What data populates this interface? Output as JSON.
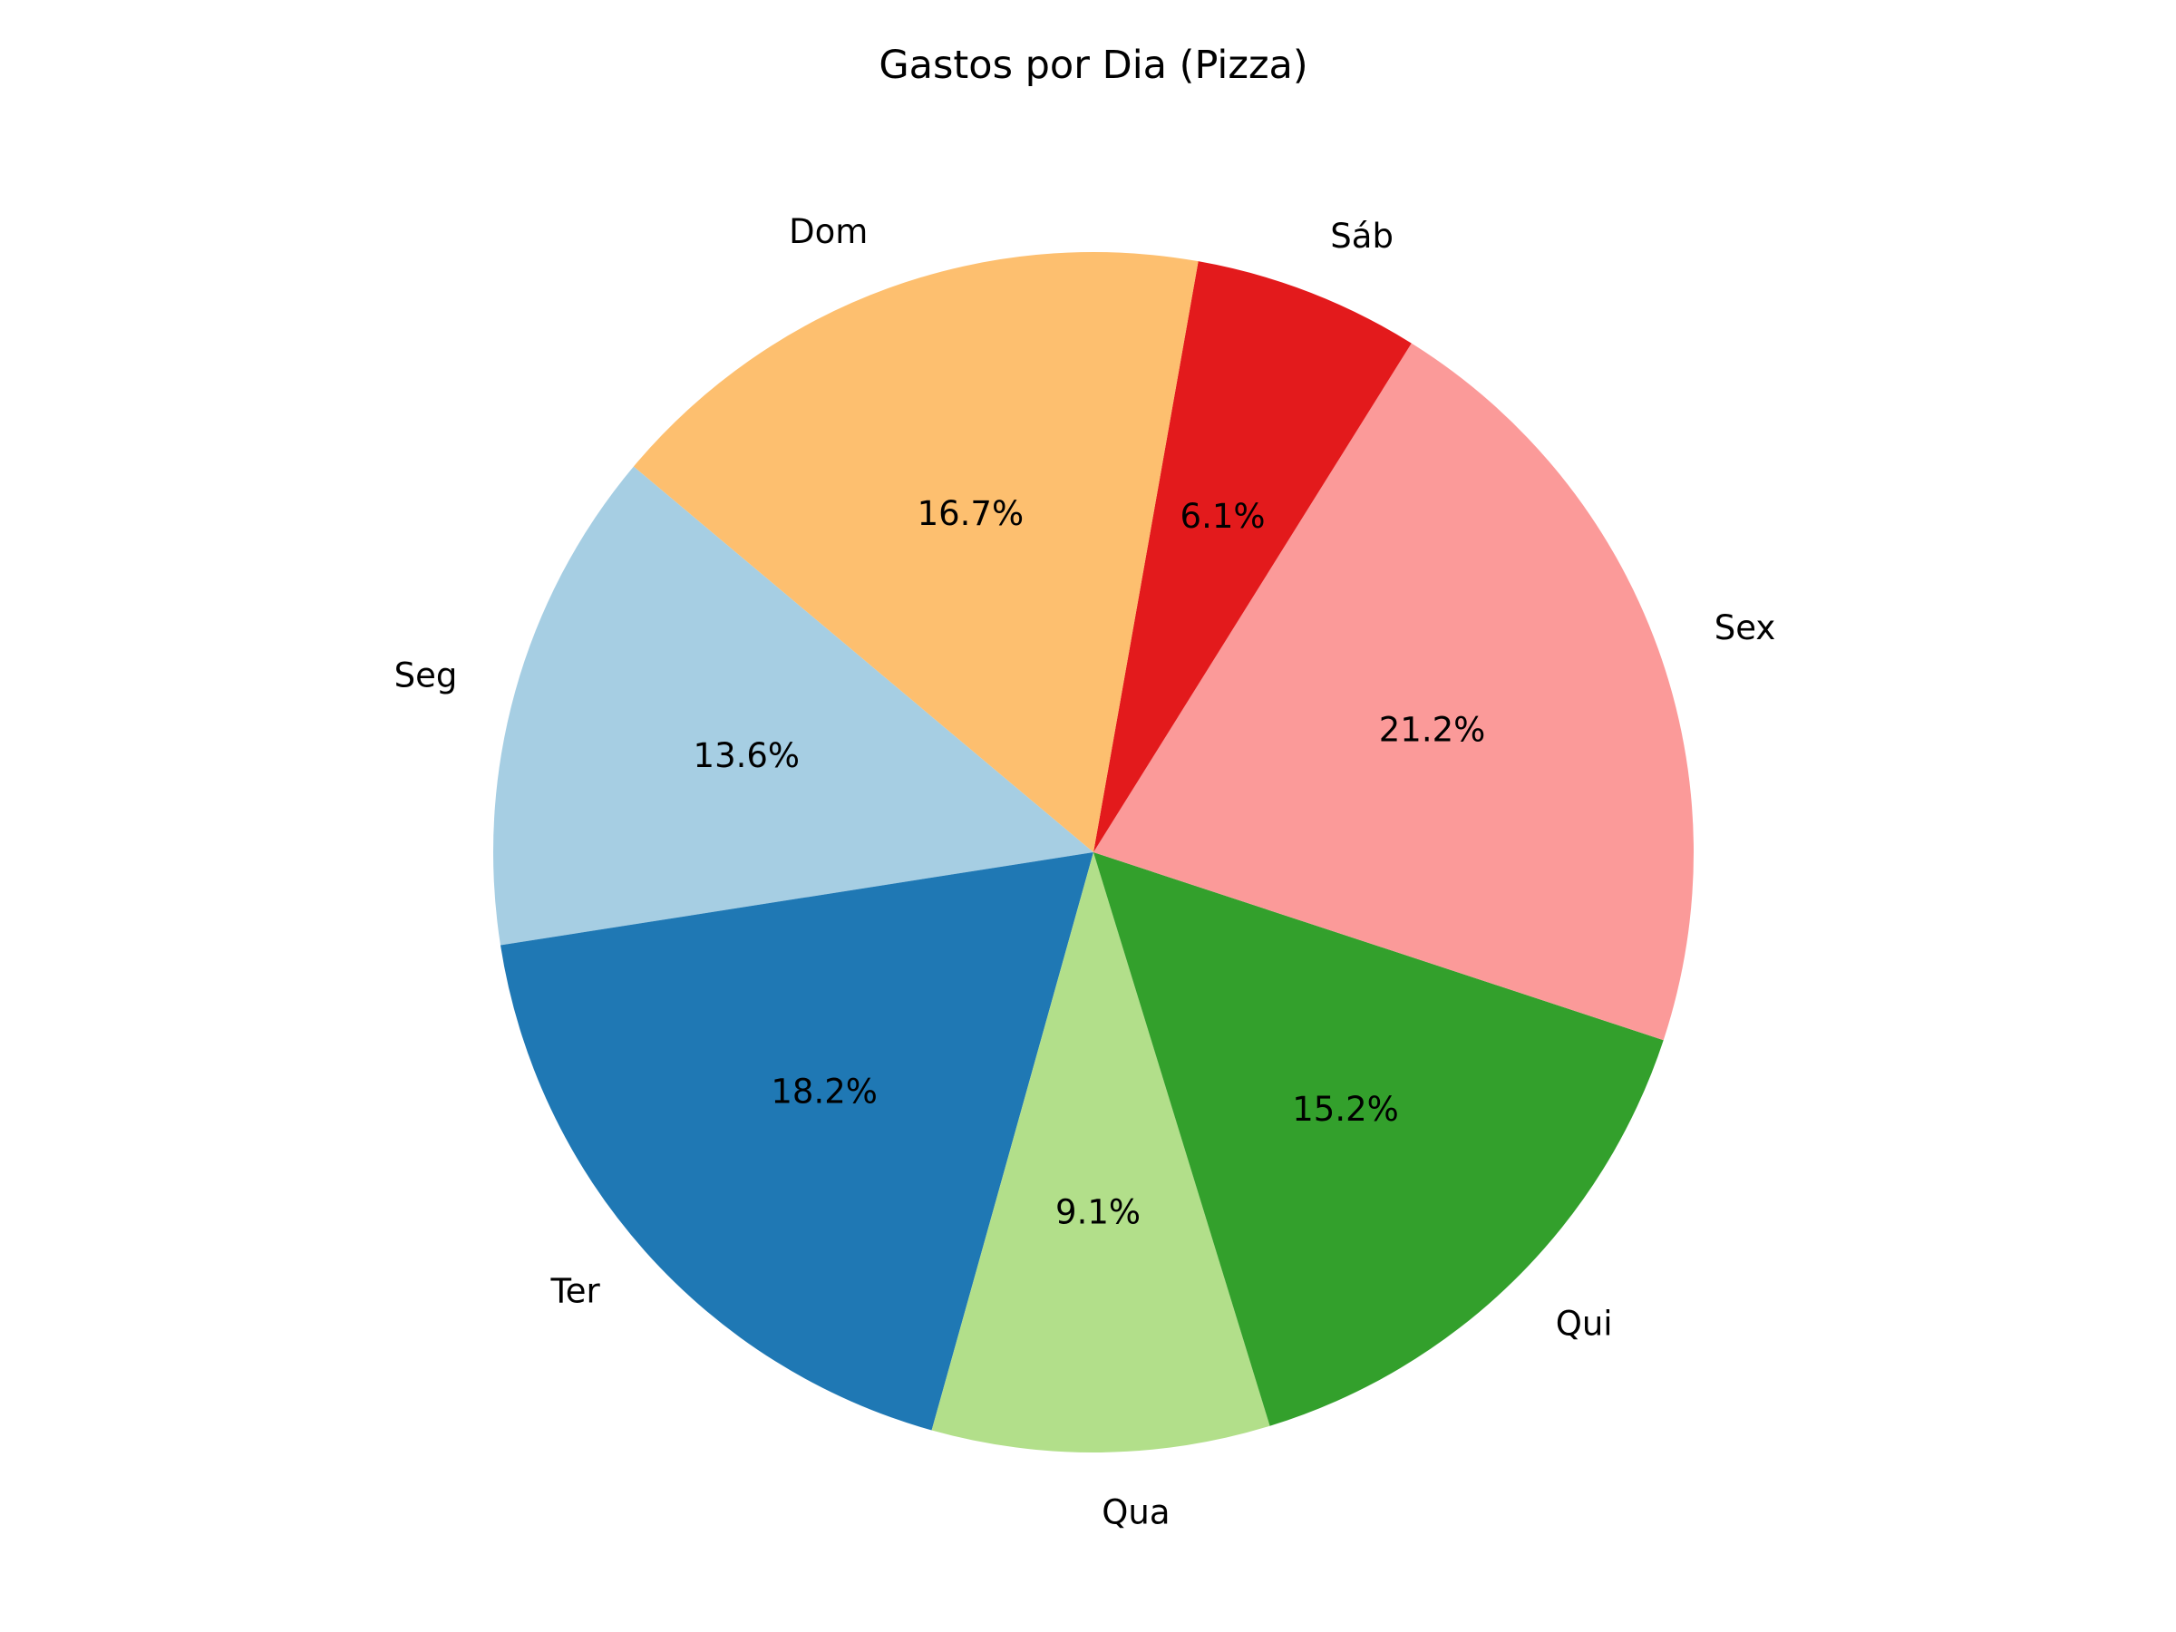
{
  "chart_data": {
    "type": "pie",
    "title": "Gastos por Dia (Pizza)",
    "categories": [
      "Seg",
      "Ter",
      "Qua",
      "Qui",
      "Sex",
      "Sáb",
      "Dom"
    ],
    "values": [
      13.6,
      18.2,
      9.1,
      15.2,
      21.2,
      6.1,
      16.7
    ],
    "percent_labels": [
      "13.6%",
      "18.2%",
      "9.1%",
      "15.2%",
      "21.2%",
      "6.1%",
      "16.7%"
    ],
    "colors": [
      "#a6cee3",
      "#1f78b4",
      "#b2df8a",
      "#33a02c",
      "#fb9a99",
      "#e31a1c",
      "#fdbf6f"
    ],
    "start_angle_deg": 140,
    "direction": "counterclockwise"
  }
}
